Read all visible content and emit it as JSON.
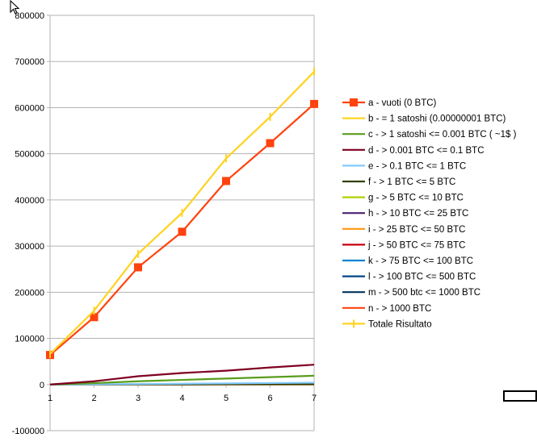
{
  "chart_data": {
    "type": "line",
    "title": "",
    "xlabel": "",
    "ylabel": "",
    "x": [
      1,
      2,
      3,
      4,
      5,
      6,
      7
    ],
    "ylim": [
      -100000,
      800000
    ],
    "yticks": [
      -100000,
      0,
      100000,
      200000,
      300000,
      400000,
      500000,
      600000,
      700000,
      800000
    ],
    "ytick_labels": [
      "-100000",
      "0",
      "100000",
      "200000",
      "300000",
      "400000",
      "500000",
      "600000",
      "700000",
      "800000"
    ],
    "grid": "horizontal major",
    "legend_position": "right",
    "series": [
      {
        "name": "a - vuoti (0 BTC)",
        "color": "#ff420e",
        "marker": "square",
        "values": [
          64000,
          146000,
          254000,
          331000,
          441000,
          523000,
          608000
        ]
      },
      {
        "name": "b - = 1 satoshi (0.00000001 BTC)",
        "color": "#ffd320",
        "marker": "none",
        "values": [
          0,
          0,
          0,
          0,
          0,
          0,
          0
        ]
      },
      {
        "name": "c - > 1 satoshi <= 0.001 BTC ( ~1$ )",
        "color": "#579d1c",
        "marker": "none",
        "values": [
          0,
          3000,
          7000,
          10000,
          13000,
          16000,
          19000
        ]
      },
      {
        "name": "d - > 0.001 BTC <= 0.1 BTC",
        "color": "#7e0021",
        "marker": "none",
        "values": [
          0,
          7000,
          18000,
          25000,
          30000,
          37000,
          43000
        ]
      },
      {
        "name": "e - > 0.1 BTC <= 1 BTC",
        "color": "#83caff",
        "marker": "none",
        "values": [
          0,
          500,
          1200,
          1800,
          2500,
          3200,
          4000
        ]
      },
      {
        "name": "f - > 1 BTC <= 5 BTC",
        "color": "#314004",
        "marker": "none",
        "values": [
          0,
          200,
          500,
          700,
          1000,
          1300,
          1600
        ]
      },
      {
        "name": "g - > 5 BTC <= 10 BTC",
        "color": "#aecf00",
        "marker": "none",
        "values": [
          0,
          100,
          200,
          300,
          400,
          500,
          600
        ]
      },
      {
        "name": "h - > 10 BTC <= 25 BTC",
        "color": "#4b1f6f",
        "marker": "none",
        "values": [
          0,
          100,
          200,
          300,
          400,
          500,
          600
        ]
      },
      {
        "name": "i - > 25 BTC <= 50 BTC",
        "color": "#ff950e",
        "marker": "none",
        "values": [
          0,
          100,
          300,
          400,
          500,
          600,
          700
        ]
      },
      {
        "name": "j - > 50 BTC <= 75 BTC",
        "color": "#c5000b",
        "marker": "none",
        "values": [
          0,
          50,
          100,
          150,
          200,
          250,
          300
        ]
      },
      {
        "name": "k - > 75 BTC <= 100 BTC",
        "color": "#0084d1",
        "marker": "none",
        "values": [
          0,
          50,
          100,
          150,
          200,
          250,
          300
        ]
      },
      {
        "name": "l - > 100 BTC <= 500 BTC",
        "color": "#004586",
        "marker": "none",
        "values": [
          0,
          50,
          100,
          150,
          200,
          250,
          300
        ]
      },
      {
        "name": "m - > 500 btc <= 1000 BTC",
        "color": "#00355f",
        "marker": "none",
        "values": [
          0,
          20,
          40,
          60,
          80,
          100,
          120
        ]
      },
      {
        "name": "n - > 1000 BTC",
        "color": "#ff420e",
        "marker": "none",
        "values": [
          0,
          20,
          40,
          60,
          80,
          100,
          120
        ]
      },
      {
        "name": "Totale Risultato",
        "color": "#ffd320",
        "marker": "cross",
        "values": [
          66000,
          160000,
          283000,
          372000,
          490000,
          580000,
          678000
        ]
      }
    ]
  }
}
